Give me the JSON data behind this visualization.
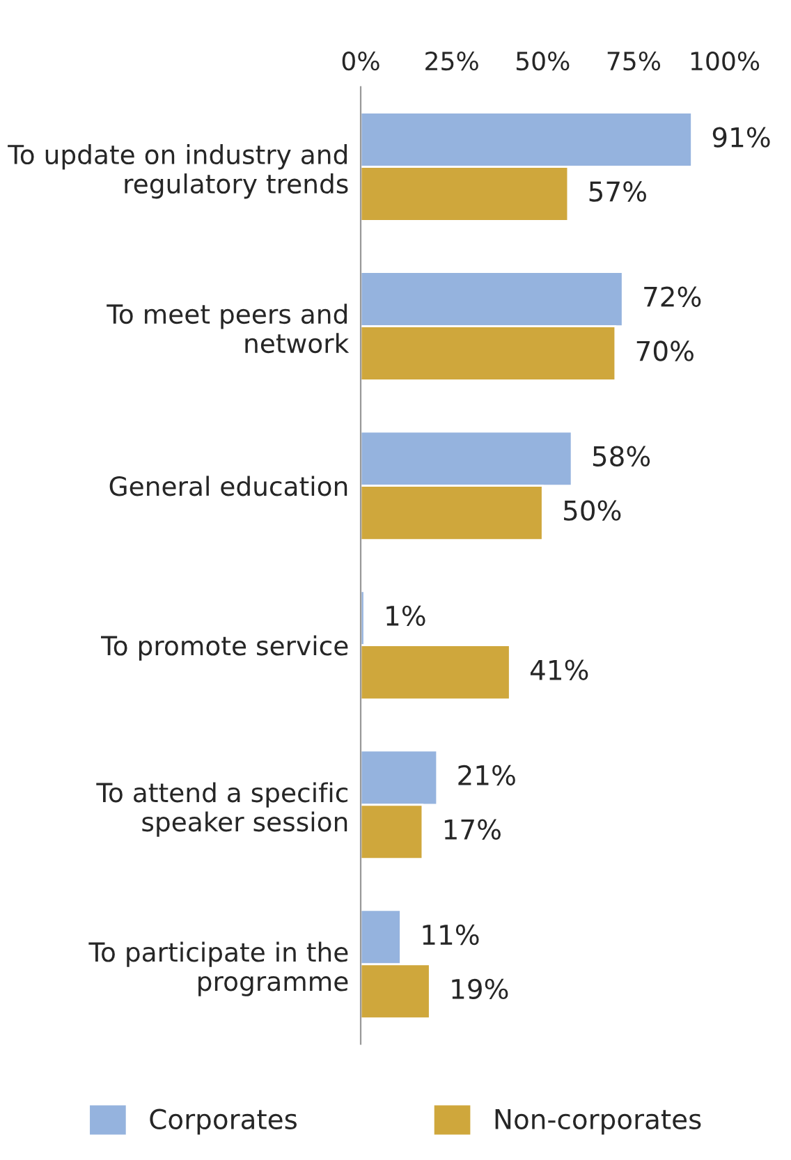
{
  "chart_data": {
    "type": "bar",
    "orientation": "horizontal",
    "categories": [
      "To update on industry and regulatory trends",
      "To meet peers and network",
      "General education",
      "To promote service",
      "To attend a specific speaker session",
      "To participate in the programme"
    ],
    "series": [
      {
        "name": "Corporates",
        "color": "#95b3de",
        "values": [
          91,
          72,
          58,
          1,
          21,
          11
        ],
        "value_labels": [
          "91%",
          "72%",
          "58%",
          "1%",
          "21%",
          "11%"
        ]
      },
      {
        "name": "Non-corporates",
        "color": "#cfa73c",
        "values": [
          57,
          70,
          50,
          41,
          17,
          19
        ],
        "value_labels": [
          "57%",
          "70%",
          "50%",
          "41%",
          "17%",
          "19%"
        ]
      }
    ],
    "xlim": [
      0,
      100
    ],
    "xticks": [
      {
        "value": 0,
        "label": "0%"
      },
      {
        "value": 25,
        "label": "25%"
      },
      {
        "value": 50,
        "label": "50%"
      },
      {
        "value": 75,
        "label": "75%"
      },
      {
        "value": 100,
        "label": "100%"
      }
    ],
    "grid": false,
    "legend": "bottom"
  }
}
